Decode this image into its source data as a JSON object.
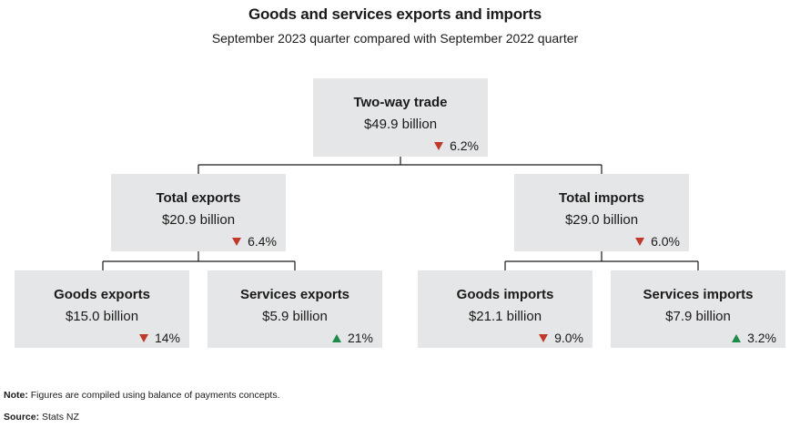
{
  "title": "Goods and services exports and imports",
  "subtitle": "September 2023 quarter compared with September 2022 quarter",
  "colors": {
    "box_bg": "#e5e6e7",
    "down": "#c0392b",
    "up": "#1b8a4a",
    "line": "#1a1a1a"
  },
  "nodes": {
    "two_way": {
      "name": "Two-way trade",
      "value": "$49.9 billion",
      "change": "6.2%",
      "direction": "down"
    },
    "total_exports": {
      "name": "Total exports",
      "value": "$20.9 billion",
      "change": "6.4%",
      "direction": "down"
    },
    "total_imports": {
      "name": "Total imports",
      "value": "$29.0 billion",
      "change": "6.0%",
      "direction": "down"
    },
    "goods_exports": {
      "name": "Goods exports",
      "value": "$15.0 billion",
      "change": "14%",
      "direction": "down"
    },
    "services_exports": {
      "name": "Services exports",
      "value": "$5.9 billion",
      "change": "21%",
      "direction": "up"
    },
    "goods_imports": {
      "name": "Goods imports",
      "value": "$21.1 billion",
      "change": "9.0%",
      "direction": "down"
    },
    "services_imports": {
      "name": "Services imports",
      "value": "$7.9 billion",
      "change": "3.2%",
      "direction": "up"
    }
  },
  "footer": {
    "note_label": "Note:",
    "note_text": "Figures are compiled using balance of payments concepts.",
    "source_label": "Source:",
    "source_text": "Stats NZ"
  }
}
